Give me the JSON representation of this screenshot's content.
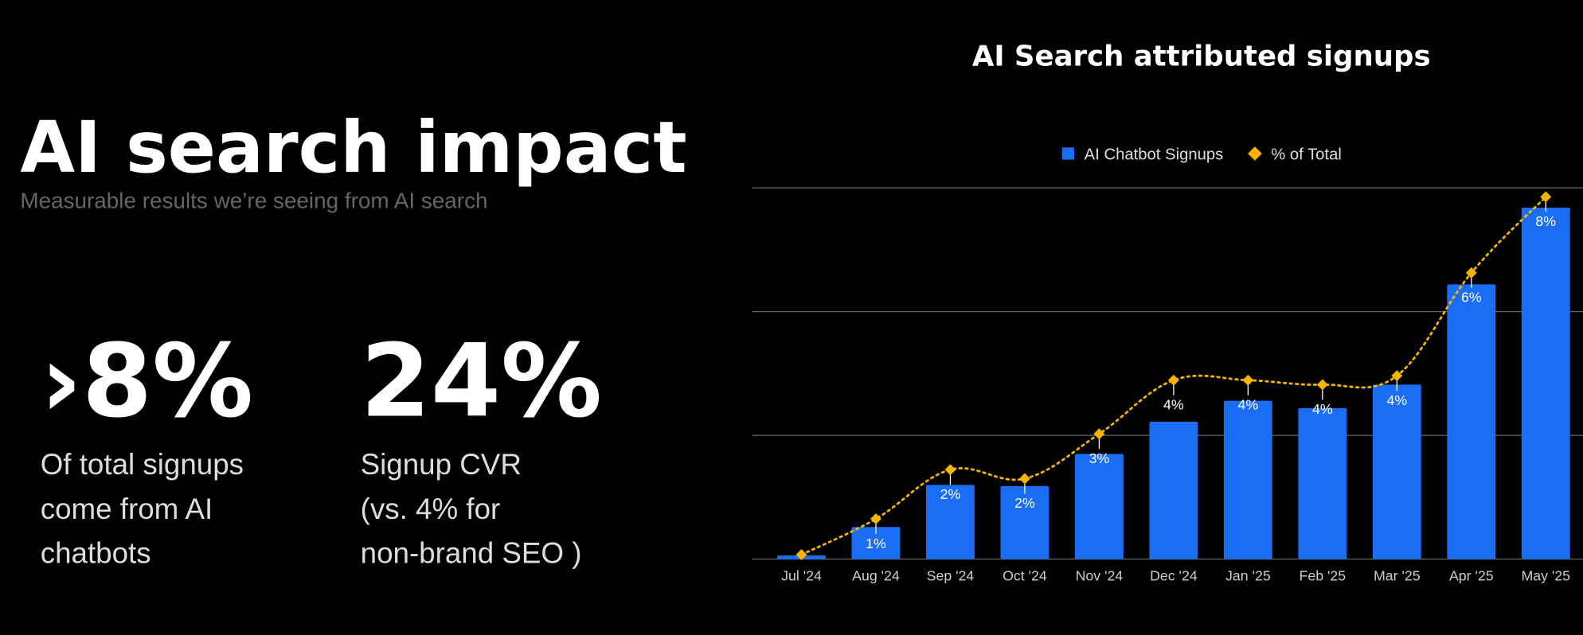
{
  "header": {
    "title": "AI search impact",
    "subtitle": "Measurable results we’re seeing from AI search"
  },
  "stats": [
    {
      "value": "›8%",
      "lines": [
        "Of total signups",
        "come from AI",
        "chatbots"
      ]
    },
    {
      "value": "24%",
      "lines": [
        "Signup CVR",
        "(vs. 4% for",
        "non-brand SEO )"
      ]
    }
  ],
  "chart_data": {
    "type": "bar_line",
    "title": "AI Search attributed signups",
    "categories": [
      "Jul '24",
      "Aug '24",
      "Sep '24",
      "Oct '24",
      "Nov '24",
      "Dec '24",
      "Jan '25",
      "Feb '25",
      "Mar '25",
      "Apr '25",
      "May '25"
    ],
    "series": [
      {
        "name": "AI Chatbot Signups",
        "color": "#1a6ef5",
        "values": [
          0.03,
          0.26,
          0.6,
          0.59,
          0.85,
          1.11,
          1.28,
          1.22,
          1.41,
          2.22,
          2.84
        ]
      },
      {
        "name": "% of Total",
        "color": "#f5b400",
        "axis": "y2",
        "values": [
          0.1,
          0.9,
          2.0,
          1.8,
          2.8,
          4.0,
          4.0,
          3.9,
          4.1,
          6.4,
          8.1
        ],
        "value_labels": [
          null,
          "1%",
          "2%",
          "2%",
          "3%",
          "4%",
          "4%",
          "4%",
          "4%",
          "6%",
          "8%"
        ]
      }
    ],
    "ylim": [
      0,
      3
    ],
    "gridlines": [
      0,
      1,
      2,
      3
    ],
    "y2lim": [
      0,
      8.3
    ],
    "grid": true,
    "legend": "top"
  }
}
